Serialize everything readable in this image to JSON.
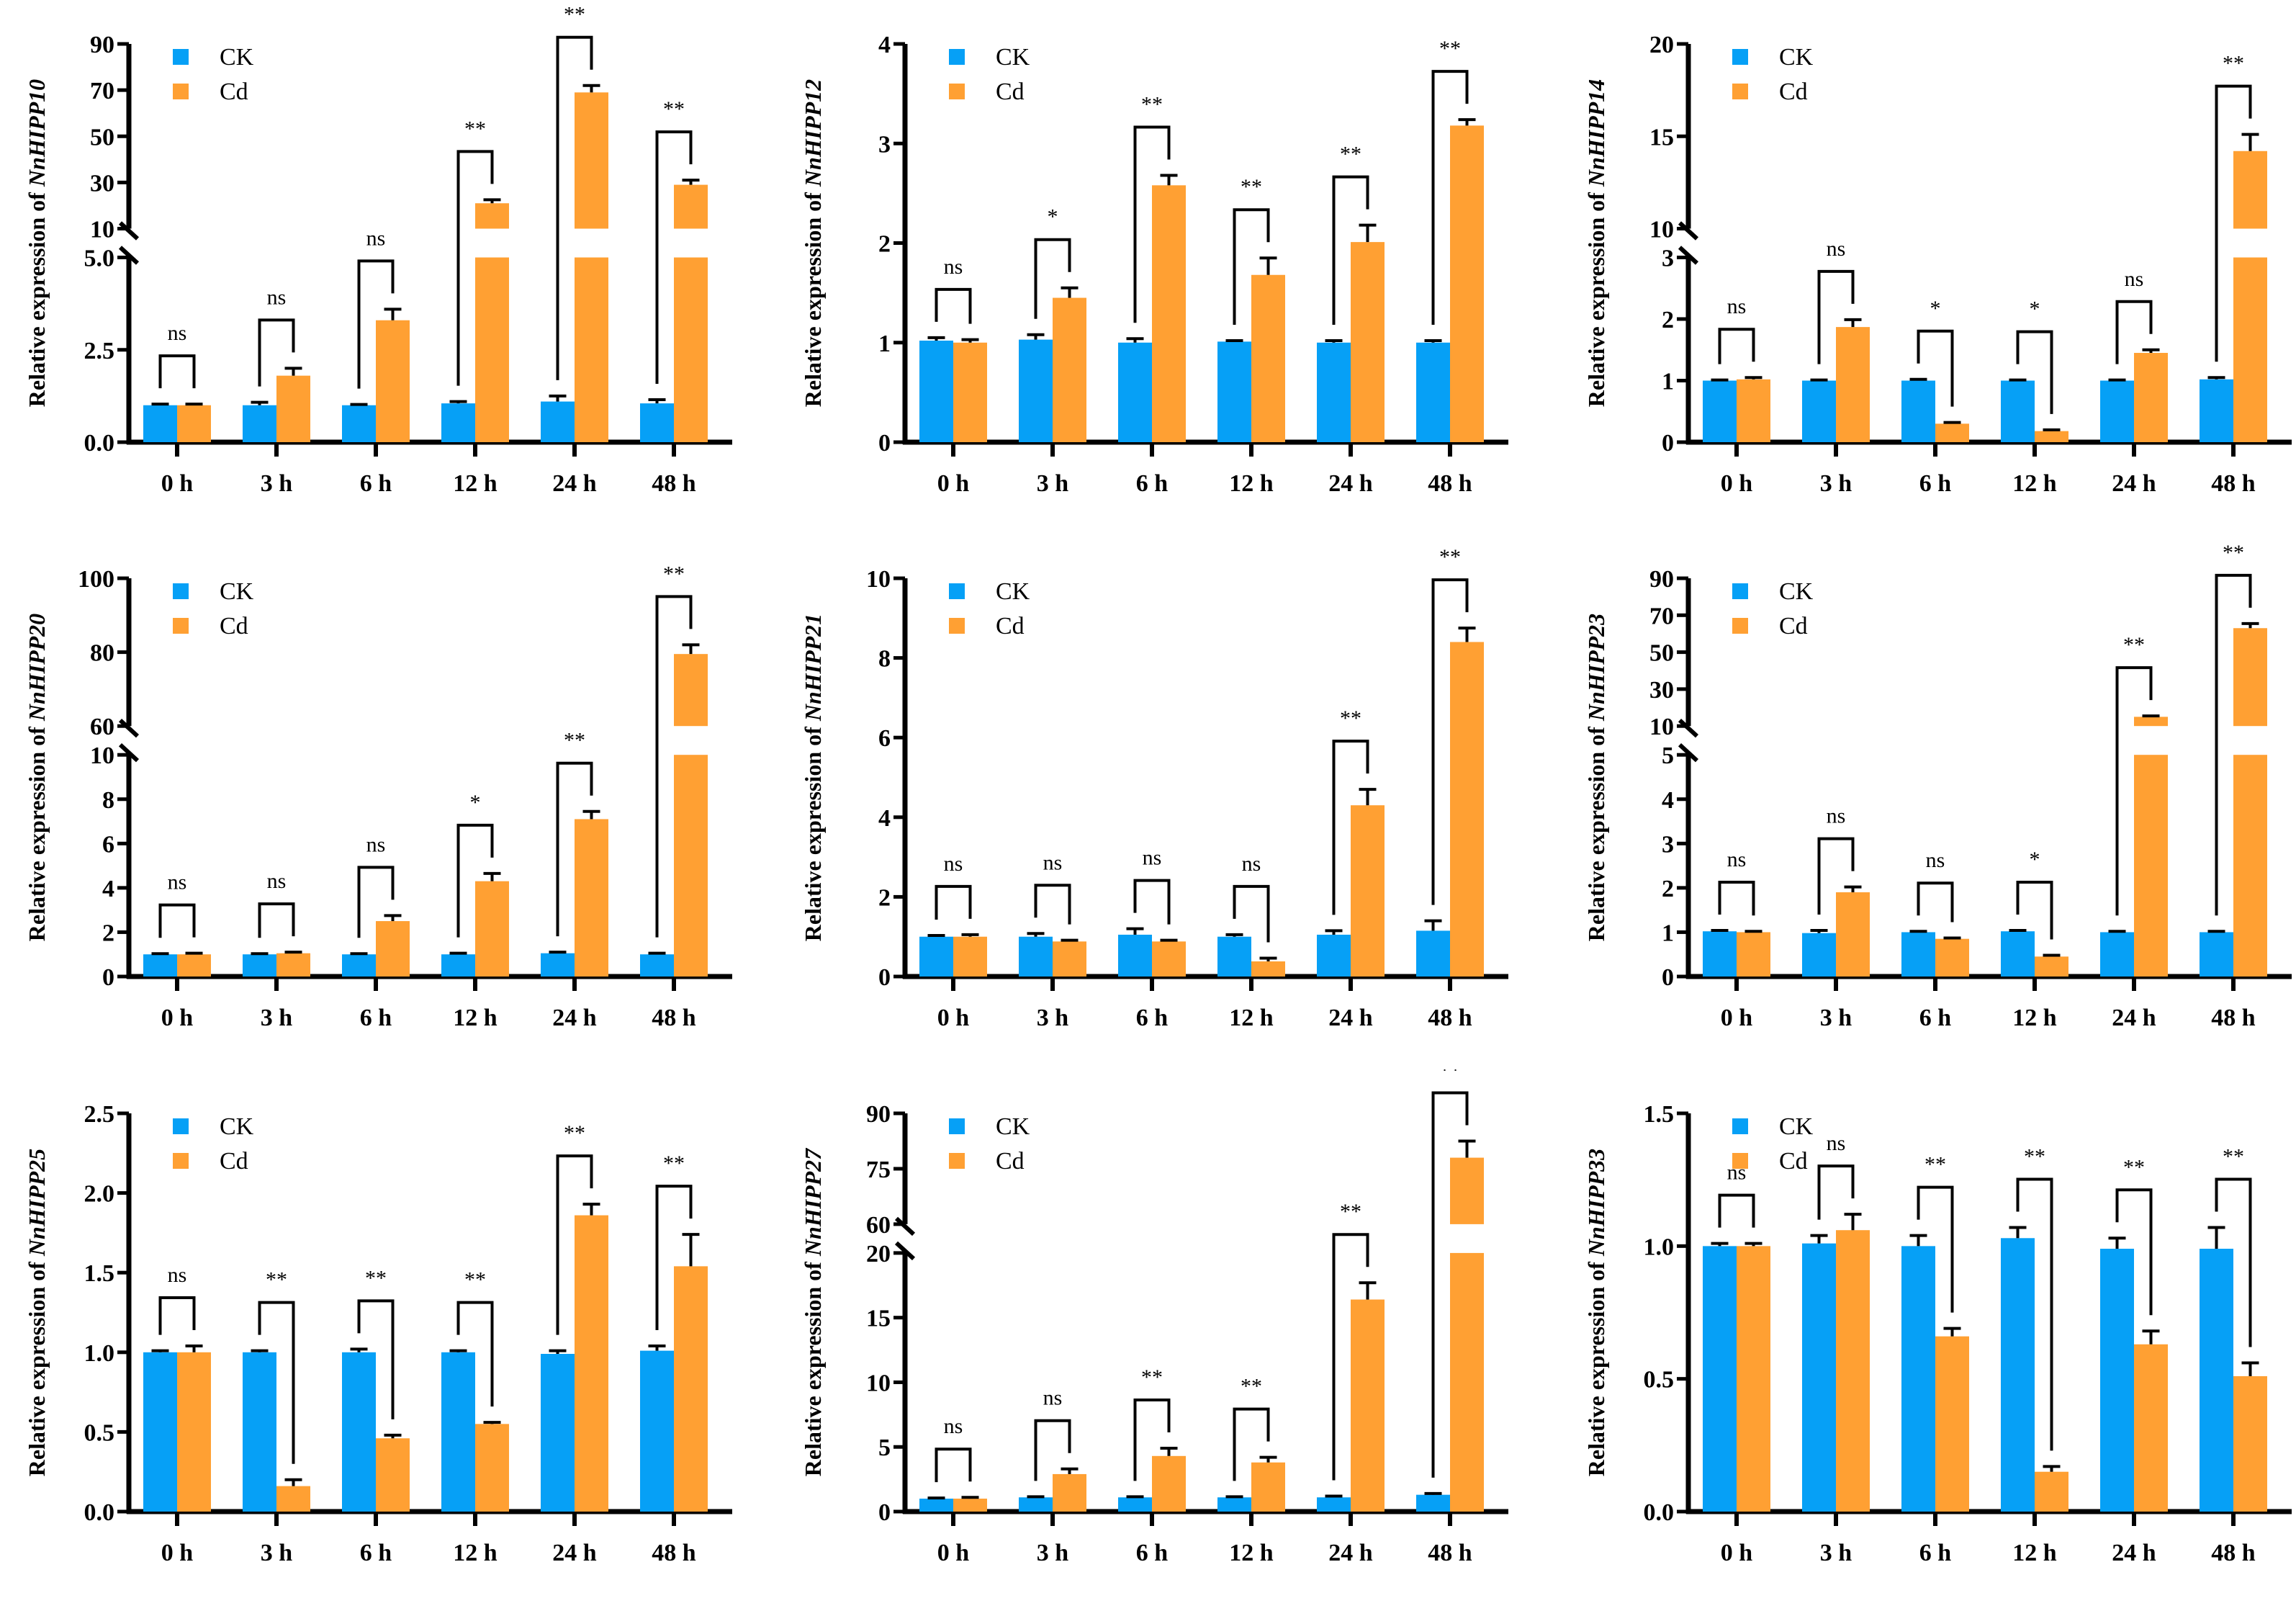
{
  "colors": {
    "CK": "#06A0F6",
    "Cd": "#FFA033",
    "axis": "#000000"
  },
  "legend": [
    "CK",
    "Cd"
  ],
  "ylabel_prefix": "Relative expression of",
  "categories": [
    "0 h",
    "3 h",
    "6 h",
    "12 h",
    "24 h",
    "48 h"
  ],
  "chart_data": [
    {
      "type": "bar",
      "gene": "NnHIPP10",
      "lower": {
        "range": [
          0,
          5
        ],
        "ticks": [
          "0.0",
          "2.5",
          "5.0"
        ]
      },
      "upper": {
        "range": [
          10,
          90
        ],
        "ticks": [
          "10",
          "30",
          "50",
          "70",
          "90"
        ]
      },
      "series": [
        {
          "name": "CK",
          "values": [
            1.0,
            1.0,
            1.0,
            1.05,
            1.1,
            1.05
          ],
          "errors": [
            0.03,
            0.08,
            0.02,
            0.05,
            0.15,
            0.1
          ]
        },
        {
          "name": "Cd",
          "values": [
            1.0,
            1.8,
            3.3,
            21,
            69,
            29
          ],
          "errors": [
            0.03,
            0.2,
            0.3,
            1.5,
            3,
            2
          ]
        }
      ],
      "significance": [
        "ns",
        "ns",
        "ns",
        "**",
        "**",
        "**"
      ]
    },
    {
      "type": "bar",
      "gene": "NnHIPP12",
      "lower": {
        "range": [
          0,
          4
        ],
        "ticks": [
          "0",
          "1",
          "2",
          "3",
          "4"
        ]
      },
      "series": [
        {
          "name": "CK",
          "values": [
            1.02,
            1.03,
            1.0,
            1.01,
            1.0,
            1.0
          ],
          "errors": [
            0.03,
            0.05,
            0.04,
            0.01,
            0.02,
            0.02
          ]
        },
        {
          "name": "Cd",
          "values": [
            1.0,
            1.45,
            2.58,
            1.68,
            2.01,
            3.18
          ],
          "errors": [
            0.03,
            0.1,
            0.1,
            0.17,
            0.17,
            0.06
          ]
        }
      ],
      "significance": [
        "ns",
        "*",
        "**",
        "**",
        "**",
        "**"
      ]
    },
    {
      "type": "bar",
      "gene": "NnHIPP14",
      "lower": {
        "range": [
          0,
          3
        ],
        "ticks": [
          "0",
          "1",
          "2",
          "3"
        ]
      },
      "upper": {
        "range": [
          10,
          20
        ],
        "ticks": [
          "10",
          "15",
          "20"
        ]
      },
      "series": [
        {
          "name": "CK",
          "values": [
            1.0,
            1.0,
            1.0,
            1.0,
            1.0,
            1.02
          ],
          "errors": [
            0.01,
            0.01,
            0.02,
            0.01,
            0.01,
            0.03
          ]
        },
        {
          "name": "Cd",
          "values": [
            1.02,
            1.87,
            0.3,
            0.18,
            1.45,
            14.2
          ],
          "errors": [
            0.03,
            0.12,
            0.02,
            0.02,
            0.05,
            0.9
          ]
        }
      ],
      "significance": [
        "ns",
        "ns",
        "*",
        "*",
        "ns",
        "**"
      ]
    },
    {
      "type": "bar",
      "gene": "NnHIPP20",
      "lower": {
        "range": [
          0,
          10
        ],
        "ticks": [
          "0",
          "2",
          "4",
          "6",
          "8",
          "10"
        ]
      },
      "upper": {
        "range": [
          60,
          100
        ],
        "ticks": [
          "60",
          "80",
          "100"
        ]
      },
      "series": [
        {
          "name": "CK",
          "values": [
            1.0,
            1.0,
            1.0,
            1.0,
            1.05,
            1.0
          ],
          "errors": [
            0.03,
            0.03,
            0.03,
            0.05,
            0.05,
            0.05
          ]
        },
        {
          "name": "Cd",
          "values": [
            1.0,
            1.05,
            2.5,
            4.3,
            7.1,
            79.5
          ],
          "errors": [
            0.05,
            0.05,
            0.25,
            0.35,
            0.35,
            2.5
          ]
        }
      ],
      "significance": [
        "ns",
        "ns",
        "ns",
        "*",
        "**",
        "**"
      ]
    },
    {
      "type": "bar",
      "gene": "NnHIPP21",
      "lower": {
        "range": [
          0,
          10
        ],
        "ticks": [
          "0",
          "2",
          "4",
          "6",
          "8",
          "10"
        ]
      },
      "series": [
        {
          "name": "CK",
          "values": [
            1.0,
            1.0,
            1.05,
            1.0,
            1.05,
            1.15
          ],
          "errors": [
            0.03,
            0.08,
            0.15,
            0.05,
            0.1,
            0.25
          ]
        },
        {
          "name": "Cd",
          "values": [
            1.0,
            0.88,
            0.88,
            0.38,
            4.3,
            8.4
          ],
          "errors": [
            0.05,
            0.03,
            0.03,
            0.08,
            0.4,
            0.35
          ]
        }
      ],
      "significance": [
        "ns",
        "ns",
        "ns",
        "ns",
        "**",
        "**"
      ]
    },
    {
      "type": "bar",
      "gene": "NnHIPP23",
      "lower": {
        "range": [
          0,
          5
        ],
        "ticks": [
          "0",
          "1",
          "2",
          "3",
          "4",
          "5"
        ]
      },
      "upper": {
        "range": [
          10,
          90
        ],
        "ticks": [
          "10",
          "30",
          "50",
          "70",
          "90"
        ]
      },
      "series": [
        {
          "name": "CK",
          "values": [
            1.02,
            0.98,
            1.0,
            1.02,
            1.0,
            1.0
          ],
          "errors": [
            0.02,
            0.06,
            0.02,
            0.02,
            0.02,
            0.02
          ]
        },
        {
          "name": "Cd",
          "values": [
            1.0,
            1.9,
            0.85,
            0.45,
            15,
            63
          ],
          "errors": [
            0.02,
            0.12,
            0.02,
            0.03,
            0.5,
            2.5
          ]
        }
      ],
      "significance": [
        "ns",
        "ns",
        "ns",
        "*",
        "**",
        "**"
      ]
    },
    {
      "type": "bar",
      "gene": "NnHIPP25",
      "lower": {
        "range": [
          0,
          2.5
        ],
        "ticks": [
          "0.0",
          "0.5",
          "1.0",
          "1.5",
          "2.0",
          "2.5"
        ]
      },
      "series": [
        {
          "name": "CK",
          "values": [
            1.0,
            1.0,
            1.0,
            1.0,
            0.99,
            1.01
          ],
          "errors": [
            0.01,
            0.01,
            0.02,
            0.01,
            0.02,
            0.03
          ]
        },
        {
          "name": "Cd",
          "values": [
            1.0,
            0.16,
            0.46,
            0.55,
            1.86,
            1.54
          ],
          "errors": [
            0.04,
            0.04,
            0.02,
            0.01,
            0.07,
            0.2
          ]
        }
      ],
      "significance": [
        "ns",
        "**",
        "**",
        "**",
        "**",
        "**"
      ]
    },
    {
      "type": "bar",
      "gene": "NnHIPP27",
      "lower": {
        "range": [
          0,
          20
        ],
        "ticks": [
          "0",
          "5",
          "10",
          "15",
          "20"
        ]
      },
      "upper": {
        "range": [
          60,
          90
        ],
        "ticks": [
          "60",
          "75",
          "90"
        ]
      },
      "series": [
        {
          "name": "CK",
          "values": [
            1.0,
            1.1,
            1.1,
            1.1,
            1.1,
            1.3
          ],
          "errors": [
            0.05,
            0.05,
            0.05,
            0.05,
            0.1,
            0.1
          ]
        },
        {
          "name": "Cd",
          "values": [
            1.0,
            2.9,
            4.3,
            3.8,
            16.4,
            78
          ],
          "errors": [
            0.1,
            0.4,
            0.6,
            0.4,
            1.3,
            4.5
          ]
        }
      ],
      "significance": [
        "ns",
        "ns",
        "**",
        "**",
        "**",
        "**"
      ]
    },
    {
      "type": "bar",
      "gene": "NnHIPP33",
      "lower": {
        "range": [
          0,
          1.5
        ],
        "ticks": [
          "0.0",
          "0.5",
          "1.0",
          "1.5"
        ]
      },
      "series": [
        {
          "name": "CK",
          "values": [
            1.0,
            1.01,
            1.0,
            1.03,
            0.99,
            0.99
          ],
          "errors": [
            0.01,
            0.03,
            0.04,
            0.04,
            0.04,
            0.08
          ]
        },
        {
          "name": "Cd",
          "values": [
            1.0,
            1.06,
            0.66,
            0.15,
            0.63,
            0.51
          ],
          "errors": [
            0.01,
            0.06,
            0.03,
            0.02,
            0.05,
            0.05
          ]
        }
      ],
      "significance": [
        "ns",
        "ns",
        "**",
        "**",
        "**",
        "**"
      ]
    }
  ]
}
